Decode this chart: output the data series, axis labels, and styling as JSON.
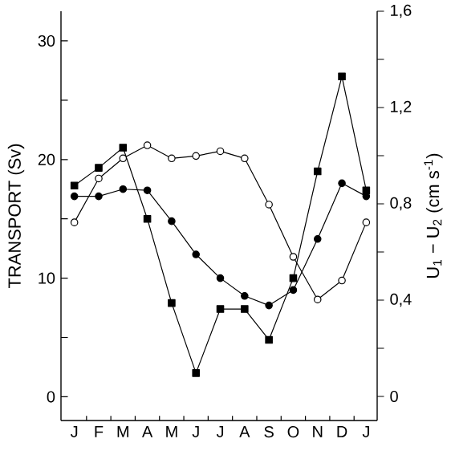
{
  "chart_data": {
    "type": "line",
    "categories": [
      "J",
      "F",
      "M",
      "A",
      "M",
      "J",
      "J",
      "A",
      "S",
      "O",
      "N",
      "D",
      "J"
    ],
    "ylabel": "TRANSPORT (Sv)",
    "y2label": "U$_{1}$ − U$_{2}$ (cm s$^{-1}$)",
    "ylim": [
      -2,
      32.5
    ],
    "yticks": [
      0,
      {
        "value": 5,
        "label": null
      },
      10,
      {
        "value": 15,
        "label": null
      },
      20,
      {
        "value": 25,
        "label": null
      },
      30
    ],
    "y2lim": [
      -0.1,
      1.6
    ],
    "y2ticks": [
      0,
      {
        "value": 0.2,
        "label": null
      },
      {
        "value": 0.4,
        "label": "0,4"
      },
      {
        "value": 0.6,
        "label": null
      },
      {
        "value": 0.8,
        "label": "0,8"
      },
      {
        "value": 1.0,
        "label": null
      },
      {
        "value": 1.2,
        "label": "1,2"
      },
      {
        "value": 1.4,
        "label": null
      },
      {
        "value": 1.6,
        "label": "1,6"
      }
    ],
    "grid": false,
    "line_style": "solid",
    "series": [
      {
        "color": "#000000",
        "marker": "square",
        "values": [
          17.8,
          19.3,
          21.0,
          15.0,
          7.9,
          2.0,
          7.4,
          7.4,
          4.8,
          10.0,
          19.0,
          27.0,
          17.4
        ]
      },
      {
        "color": "#000000",
        "marker": "circle",
        "values": [
          16.9,
          16.9,
          17.5,
          17.4,
          14.8,
          12.0,
          10.0,
          8.5,
          7.7,
          9.0,
          13.3,
          18.0,
          16.9
        ]
      },
      {
        "color": "#ffffff",
        "marker": "circle",
        "values": [
          14.7,
          18.4,
          20.1,
          21.2,
          20.1,
          20.3,
          20.7,
          20.1,
          16.2,
          11.8,
          8.2,
          9.8,
          14.7
        ]
      }
    ]
  }
}
